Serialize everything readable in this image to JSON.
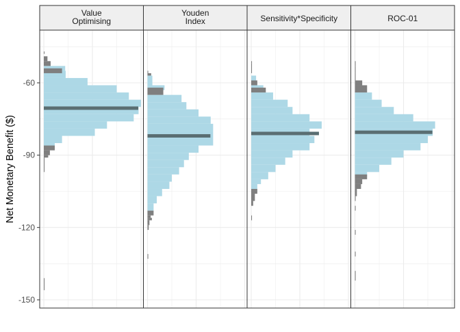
{
  "chart_data": {
    "type": "histogram",
    "orientation": "horizontal",
    "ylabel": "Net Monetary Benefit ($)",
    "xlabel": "",
    "ylim": [
      -153,
      -40
    ],
    "y_ticks": [
      -60,
      -90,
      -120,
      -150
    ],
    "y_tick_labels": [
      "-60",
      "-90",
      "-120",
      "-150"
    ],
    "grid": true,
    "colors": {
      "main": "#add8e6",
      "tail": "#7f7f7f",
      "median": "#5a6e72",
      "strip": "#efefef",
      "grid": "#ebebeb",
      "border": "#333333"
    },
    "panels": [
      {
        "title_lines": [
          "Value",
          "Optimising"
        ],
        "median": -70.5,
        "bins": [
          {
            "y0": -48,
            "y1": -47,
            "count": 0.3,
            "tail": true
          },
          {
            "y0": -51,
            "y1": -49,
            "count": 1.5,
            "tail": true
          },
          {
            "y0": -53,
            "y1": -51,
            "count": 2.8,
            "tail": true
          },
          {
            "y0": -55,
            "y1": -53,
            "count": 8.8,
            "tail": false
          },
          {
            "y0": -56,
            "y1": -54,
            "count": 7.5,
            "tail": true
          },
          {
            "y0": -58,
            "y1": -55,
            "count": 9,
            "tail": false
          },
          {
            "y0": -61,
            "y1": -58,
            "count": 18,
            "tail": false
          },
          {
            "y0": -64,
            "y1": -61,
            "count": 30,
            "tail": false
          },
          {
            "y0": -67,
            "y1": -64,
            "count": 35,
            "tail": false
          },
          {
            "y0": -70,
            "y1": -67,
            "count": 40,
            "tail": false
          },
          {
            "y0": -73,
            "y1": -70,
            "count": 39,
            "tail": false
          },
          {
            "y0": -76,
            "y1": -73,
            "count": 37,
            "tail": false
          },
          {
            "y0": -79,
            "y1": -76,
            "count": 26,
            "tail": false
          },
          {
            "y0": -82,
            "y1": -79,
            "count": 21,
            "tail": false
          },
          {
            "y0": -85,
            "y1": -82,
            "count": 7.5,
            "tail": false
          },
          {
            "y0": -87,
            "y1": -85,
            "count": 4.5,
            "tail": false
          },
          {
            "y0": -88,
            "y1": -86,
            "count": 4.5,
            "tail": true
          },
          {
            "y0": -90,
            "y1": -88,
            "count": 2.5,
            "tail": true
          },
          {
            "y0": -91,
            "y1": -90,
            "count": 1.8,
            "tail": true
          },
          {
            "y0": -97,
            "y1": -91,
            "count": 0.3,
            "tail": true
          },
          {
            "y0": -146,
            "y1": -141,
            "count": 0.3,
            "tail": true
          }
        ]
      },
      {
        "title_lines": [
          "Youden",
          "Index"
        ],
        "median": -82,
        "bins": [
          {
            "y0": -56,
            "y1": -55,
            "count": 0.3,
            "tail": true
          },
          {
            "y0": -57,
            "y1": -56,
            "count": 1.5,
            "tail": true
          },
          {
            "y0": -61,
            "y1": -57,
            "count": 2,
            "tail": false
          },
          {
            "y0": -63,
            "y1": -61,
            "count": 7,
            "tail": false
          },
          {
            "y0": -65,
            "y1": -62,
            "count": 6.5,
            "tail": true
          },
          {
            "y0": -68,
            "y1": -65,
            "count": 14,
            "tail": false
          },
          {
            "y0": -71,
            "y1": -68,
            "count": 16,
            "tail": false
          },
          {
            "y0": -74,
            "y1": -71,
            "count": 21,
            "tail": false
          },
          {
            "y0": -77,
            "y1": -74,
            "count": 26,
            "tail": false
          },
          {
            "y0": -80,
            "y1": -77,
            "count": 27,
            "tail": false
          },
          {
            "y0": -83,
            "y1": -80,
            "count": 27,
            "tail": false
          },
          {
            "y0": -86,
            "y1": -83,
            "count": 27,
            "tail": false
          },
          {
            "y0": -89,
            "y1": -86,
            "count": 21,
            "tail": false
          },
          {
            "y0": -92,
            "y1": -89,
            "count": 17,
            "tail": false
          },
          {
            "y0": -95,
            "y1": -92,
            "count": 15,
            "tail": false
          },
          {
            "y0": -98,
            "y1": -95,
            "count": 13,
            "tail": false
          },
          {
            "y0": -101,
            "y1": -98,
            "count": 10,
            "tail": false
          },
          {
            "y0": -104,
            "y1": -101,
            "count": 9,
            "tail": false
          },
          {
            "y0": -107,
            "y1": -104,
            "count": 6,
            "tail": false
          },
          {
            "y0": -110,
            "y1": -107,
            "count": 3.8,
            "tail": false
          },
          {
            "y0": -113,
            "y1": -110,
            "count": 2.5,
            "tail": false
          },
          {
            "y0": -115,
            "y1": -113,
            "count": 2.5,
            "tail": true
          },
          {
            "y0": -116,
            "y1": -115,
            "count": 1.3,
            "tail": true
          },
          {
            "y0": -117,
            "y1": -116,
            "count": 1.8,
            "tail": true
          },
          {
            "y0": -119,
            "y1": -117,
            "count": 0.8,
            "tail": true
          },
          {
            "y0": -121,
            "y1": -119,
            "count": 0.5,
            "tail": true
          },
          {
            "y0": -133,
            "y1": -131,
            "count": 0.3,
            "tail": true
          }
        ]
      },
      {
        "title_lines": [
          "Sensitivity*Specificity"
        ],
        "median": -81,
        "bins": [
          {
            "y0": -52,
            "y1": -51,
            "count": 0.3,
            "tail": true
          },
          {
            "y0": -56,
            "y1": -52,
            "count": 0.3,
            "tail": true
          },
          {
            "y0": -59,
            "y1": -57,
            "count": 2,
            "tail": false
          },
          {
            "y0": -61,
            "y1": -59,
            "count": 2.5,
            "tail": true
          },
          {
            "y0": -63,
            "y1": -61,
            "count": 5,
            "tail": false
          },
          {
            "y0": -64,
            "y1": -62,
            "count": 6,
            "tail": true
          },
          {
            "y0": -67,
            "y1": -64,
            "count": 9,
            "tail": false
          },
          {
            "y0": -70,
            "y1": -67,
            "count": 15,
            "tail": false
          },
          {
            "y0": -73,
            "y1": -70,
            "count": 17,
            "tail": false
          },
          {
            "y0": -76,
            "y1": -73,
            "count": 24,
            "tail": false
          },
          {
            "y0": -79,
            "y1": -76,
            "count": 29,
            "tail": false
          },
          {
            "y0": -82,
            "y1": -79,
            "count": 24,
            "tail": false
          },
          {
            "y0": -85,
            "y1": -82,
            "count": 26,
            "tail": false
          },
          {
            "y0": -88,
            "y1": -85,
            "count": 24,
            "tail": false
          },
          {
            "y0": -91,
            "y1": -88,
            "count": 17,
            "tail": false
          },
          {
            "y0": -94,
            "y1": -91,
            "count": 14,
            "tail": false
          },
          {
            "y0": -97,
            "y1": -94,
            "count": 10,
            "tail": false
          },
          {
            "y0": -100,
            "y1": -97,
            "count": 7,
            "tail": false
          },
          {
            "y0": -102,
            "y1": -100,
            "count": 4,
            "tail": false
          },
          {
            "y0": -105,
            "y1": -102,
            "count": 2.5,
            "tail": false
          },
          {
            "y0": -106,
            "y1": -104,
            "count": 2.5,
            "tail": true
          },
          {
            "y0": -109,
            "y1": -106,
            "count": 1.5,
            "tail": true
          },
          {
            "y0": -111,
            "y1": -109,
            "count": 0.8,
            "tail": true
          },
          {
            "y0": -117,
            "y1": -115,
            "count": 0.3,
            "tail": true
          }
        ]
      },
      {
        "title_lines": [
          "ROC-01"
        ],
        "median": -80.5,
        "bins": [
          {
            "y0": -53,
            "y1": -51,
            "count": 0.3,
            "tail": true
          },
          {
            "y0": -56,
            "y1": -53,
            "count": 0.3,
            "tail": true
          },
          {
            "y0": -59,
            "y1": -56,
            "count": 0.3,
            "tail": true
          },
          {
            "y0": -61,
            "y1": -59,
            "count": 3,
            "tail": true
          },
          {
            "y0": -63,
            "y1": -61,
            "count": 4,
            "tail": false
          },
          {
            "y0": -64,
            "y1": -61,
            "count": 5,
            "tail": true
          },
          {
            "y0": -67,
            "y1": -64,
            "count": 7,
            "tail": false
          },
          {
            "y0": -70,
            "y1": -67,
            "count": 11,
            "tail": false
          },
          {
            "y0": -73,
            "y1": -70,
            "count": 16,
            "tail": false
          },
          {
            "y0": -76,
            "y1": -73,
            "count": 24,
            "tail": false
          },
          {
            "y0": -79,
            "y1": -76,
            "count": 33,
            "tail": false
          },
          {
            "y0": -82,
            "y1": -79,
            "count": 32,
            "tail": false
          },
          {
            "y0": -85,
            "y1": -82,
            "count": 30,
            "tail": false
          },
          {
            "y0": -88,
            "y1": -85,
            "count": 27,
            "tail": false
          },
          {
            "y0": -91,
            "y1": -88,
            "count": 20,
            "tail": false
          },
          {
            "y0": -94,
            "y1": -91,
            "count": 15,
            "tail": false
          },
          {
            "y0": -97,
            "y1": -94,
            "count": 10,
            "tail": false
          },
          {
            "y0": -99,
            "y1": -97,
            "count": 5,
            "tail": false
          },
          {
            "y0": -100,
            "y1": -98,
            "count": 5,
            "tail": true
          },
          {
            "y0": -102,
            "y1": -100,
            "count": 3,
            "tail": true
          },
          {
            "y0": -104,
            "y1": -102,
            "count": 2.5,
            "tail": true
          },
          {
            "y0": -107,
            "y1": -104,
            "count": 0.8,
            "tail": true
          },
          {
            "y0": -109,
            "y1": -107,
            "count": 0.3,
            "tail": true
          },
          {
            "y0": -113,
            "y1": -111,
            "count": 0.3,
            "tail": true
          },
          {
            "y0": -123,
            "y1": -121,
            "count": 0.3,
            "tail": true
          },
          {
            "y0": -132,
            "y1": -130,
            "count": 0.3,
            "tail": true
          },
          {
            "y0": -142,
            "y1": -138,
            "count": 0.3,
            "tail": true
          }
        ]
      }
    ]
  }
}
